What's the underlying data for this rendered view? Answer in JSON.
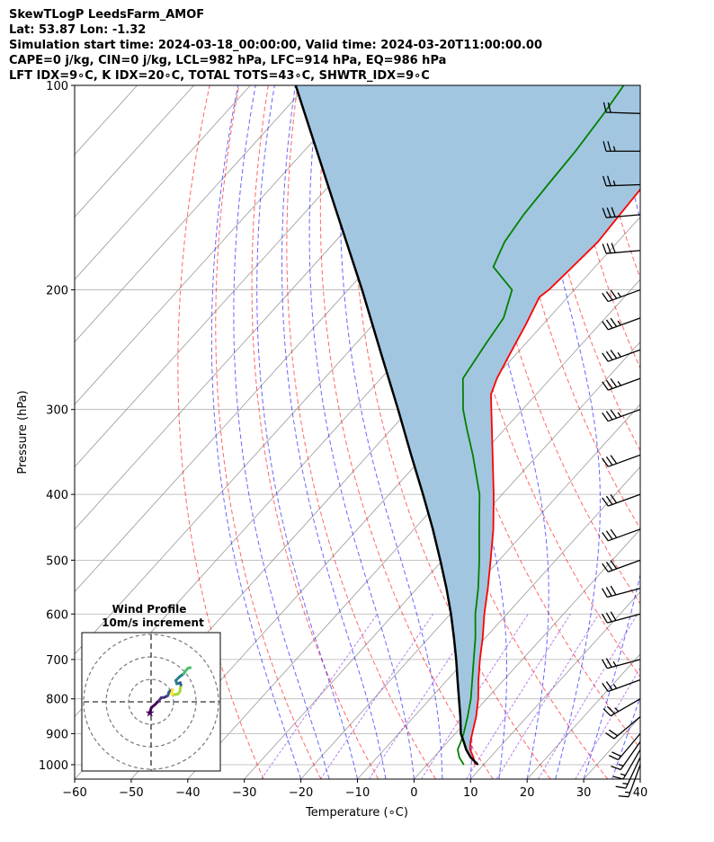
{
  "header": {
    "line1": "SkewTLogP LeedsFarm_AMOF",
    "line2": "Lat: 53.87   Lon: -1.32",
    "line3": "Simulation start time: 2024-03-18_00:00:00, Valid time: 2024-03-20T11:00:00.00",
    "line4": "CAPE=0 j/kg, CIN=0 j/kg, LCL=982 hPa, LFC=914 hPa, EQ=986 hPa",
    "line5": "LFT IDX=9∘C, K IDX=20∘C, TOTAL TOTS=43∘C, SHWTR_IDX=9∘C"
  },
  "chart_data": {
    "type": "line",
    "subtype": "skew-t log-p",
    "xlabel": "Temperature (∘C)",
    "ylabel": "Pressure (hPa)",
    "xlim": [
      -60,
      40
    ],
    "ylim": [
      1050,
      100
    ],
    "y_scale": "log",
    "grid": true,
    "x_ticks": [
      "−60",
      "−50",
      "−40",
      "−30",
      "−20",
      "−10",
      "0",
      "10",
      "20",
      "30",
      "40"
    ],
    "y_ticks": [
      "1000",
      "900",
      "800",
      "700",
      "600",
      "500",
      "400",
      "300",
      "200",
      "100"
    ],
    "colors": {
      "temperature": "#ff0000",
      "dewpoint": "#008000",
      "parcel": "#000000",
      "cape_fill": "#a2c6e0",
      "dry_adiabats": "#ff0000",
      "moist_adiabats": "#0000ff",
      "mixing_ratio": "#8a2be2",
      "isotherms": "#999999"
    },
    "series": [
      {
        "kind": "temperature",
        "values": [
          [
            1000,
            8.5
          ],
          [
            975,
            7.0
          ],
          [
            950,
            5.2
          ],
          [
            925,
            4.0
          ],
          [
            900,
            3.0
          ],
          [
            850,
            1.0
          ],
          [
            800,
            -1.5
          ],
          [
            750,
            -4.5
          ],
          [
            700,
            -7.5
          ],
          [
            650,
            -10.5
          ],
          [
            600,
            -14.0
          ],
          [
            550,
            -17.5
          ],
          [
            500,
            -21.5
          ],
          [
            450,
            -26.0
          ],
          [
            400,
            -31.5
          ],
          [
            350,
            -38.0
          ],
          [
            300,
            -45.5
          ],
          [
            285,
            -48.0
          ],
          [
            270,
            -49.5
          ],
          [
            250,
            -51.0
          ],
          [
            225,
            -53.0
          ],
          [
            205,
            -55.0
          ],
          [
            200,
            -54.5
          ],
          [
            185,
            -54.0
          ],
          [
            170,
            -53.5
          ],
          [
            155,
            -54.0
          ],
          [
            140,
            -54.5
          ],
          [
            125,
            -56.0
          ],
          [
            110,
            -57.5
          ],
          [
            100,
            -58.5
          ]
        ]
      },
      {
        "kind": "dewpoint",
        "values": [
          [
            1000,
            6.5
          ],
          [
            975,
            4.5
          ],
          [
            950,
            3.0
          ],
          [
            925,
            2.3
          ],
          [
            900,
            1.5
          ],
          [
            850,
            -0.5
          ],
          [
            800,
            -2.8
          ],
          [
            750,
            -5.6
          ],
          [
            700,
            -8.6
          ],
          [
            650,
            -11.8
          ],
          [
            600,
            -15.6
          ],
          [
            550,
            -19.2
          ],
          [
            500,
            -23.5
          ],
          [
            450,
            -28.5
          ],
          [
            400,
            -34.0
          ],
          [
            350,
            -41.5
          ],
          [
            320,
            -46.8
          ],
          [
            300,
            -50.5
          ],
          [
            270,
            -55.5
          ],
          [
            240,
            -57.0
          ],
          [
            220,
            -58.0
          ],
          [
            200,
            -61.0
          ],
          [
            185,
            -68.0
          ],
          [
            170,
            -70.0
          ],
          [
            155,
            -71.0
          ],
          [
            140,
            -71.5
          ],
          [
            125,
            -72.0
          ],
          [
            110,
            -73.0
          ],
          [
            100,
            -74.0
          ]
        ]
      },
      {
        "kind": "parcel",
        "values": [
          [
            1000,
            9.0
          ],
          [
            975,
            6.5
          ],
          [
            950,
            4.5
          ],
          [
            925,
            2.8
          ],
          [
            900,
            1.0
          ],
          [
            850,
            -1.8
          ],
          [
            800,
            -4.9
          ],
          [
            750,
            -8.2
          ],
          [
            700,
            -11.7
          ],
          [
            650,
            -15.6
          ],
          [
            600,
            -19.9
          ],
          [
            550,
            -24.8
          ],
          [
            500,
            -30.4
          ],
          [
            450,
            -36.7
          ],
          [
            400,
            -44.0
          ],
          [
            350,
            -52.4
          ],
          [
            300,
            -62.0
          ],
          [
            250,
            -73.5
          ],
          [
            200,
            -87.5
          ],
          [
            150,
            -106.0
          ],
          [
            100,
            -132.0
          ]
        ]
      }
    ],
    "wind_barbs": [
      {
        "p": 1000,
        "speed_kt": 15,
        "dir_deg": 200
      },
      {
        "p": 975,
        "speed_kt": 15,
        "dir_deg": 205
      },
      {
        "p": 950,
        "speed_kt": 15,
        "dir_deg": 210
      },
      {
        "p": 925,
        "speed_kt": 15,
        "dir_deg": 215
      },
      {
        "p": 900,
        "speed_kt": 20,
        "dir_deg": 220
      },
      {
        "p": 850,
        "speed_kt": 20,
        "dir_deg": 230
      },
      {
        "p": 800,
        "speed_kt": 25,
        "dir_deg": 240
      },
      {
        "p": 750,
        "speed_kt": 25,
        "dir_deg": 250
      },
      {
        "p": 700,
        "speed_kt": 25,
        "dir_deg": 255
      },
      {
        "p": 600,
        "speed_kt": 30,
        "dir_deg": 255
      },
      {
        "p": 550,
        "speed_kt": 30,
        "dir_deg": 255
      },
      {
        "p": 500,
        "speed_kt": 30,
        "dir_deg": 250
      },
      {
        "p": 450,
        "speed_kt": 30,
        "dir_deg": 250
      },
      {
        "p": 400,
        "speed_kt": 30,
        "dir_deg": 250
      },
      {
        "p": 350,
        "speed_kt": 30,
        "dir_deg": 250
      },
      {
        "p": 300,
        "speed_kt": 35,
        "dir_deg": 250
      },
      {
        "p": 270,
        "speed_kt": 35,
        "dir_deg": 250
      },
      {
        "p": 245,
        "speed_kt": 35,
        "dir_deg": 250
      },
      {
        "p": 220,
        "speed_kt": 35,
        "dir_deg": 250
      },
      {
        "p": 200,
        "speed_kt": 35,
        "dir_deg": 250
      },
      {
        "p": 175,
        "speed_kt": 30,
        "dir_deg": 265
      },
      {
        "p": 155,
        "speed_kt": 30,
        "dir_deg": 265
      },
      {
        "p": 140,
        "speed_kt": 25,
        "dir_deg": 268
      },
      {
        "p": 125,
        "speed_kt": 25,
        "dir_deg": 270
      },
      {
        "p": 110,
        "speed_kt": 20,
        "dir_deg": 272
      }
    ],
    "hodograph": {
      "title": "Wind Profile",
      "subtitle": "10m/s increment",
      "ring_count": 3,
      "max_speed_ms": 30,
      "points": [
        [
          -0.5,
          -4.5
        ],
        [
          0.2,
          -2.5
        ],
        [
          1.8,
          -1.2
        ],
        [
          3.5,
          0.5
        ],
        [
          4.5,
          1.8
        ],
        [
          6.0,
          2.0
        ],
        [
          7.5,
          2.8
        ],
        [
          8.0,
          4.5
        ],
        [
          8.8,
          5.0
        ],
        [
          9.5,
          5.4
        ],
        [
          9.2,
          3.5
        ],
        [
          10.5,
          3.2
        ],
        [
          12.0,
          3.5
        ],
        [
          12.8,
          4.5
        ],
        [
          13.0,
          6.0
        ],
        [
          13.3,
          7.5
        ],
        [
          13.0,
          8.5
        ],
        [
          11.5,
          8.0
        ],
        [
          11.0,
          9.5
        ],
        [
          12.5,
          11.0
        ],
        [
          14.5,
          12.5
        ],
        [
          15.5,
          14.0
        ],
        [
          16.5,
          15.0
        ],
        [
          17.5,
          15.2
        ]
      ]
    }
  }
}
